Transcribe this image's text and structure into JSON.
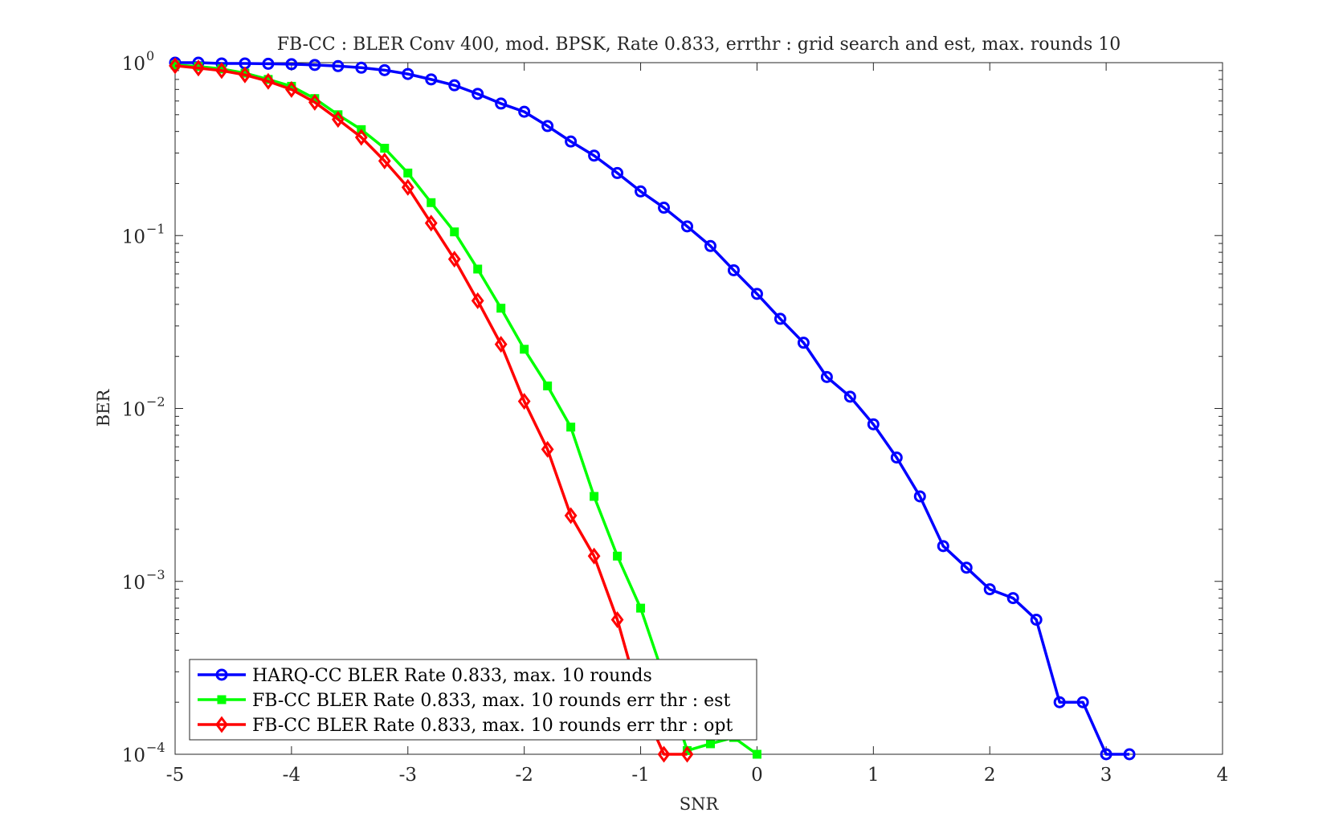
{
  "chart_data": {
    "type": "line",
    "title": "FB-CC : BLER Conv 400, mod. BPSK, Rate 0.833, errthr : grid search and est, max. rounds 10",
    "xlabel": "SNR",
    "ylabel": "BER",
    "xlim": [
      -5,
      4
    ],
    "ylim": [
      0.0001,
      1
    ],
    "yscale": "log",
    "grid": false,
    "legend_position": "bottom-left",
    "x_ticks": [
      "-5",
      "-4",
      "-3",
      "-2",
      "-1",
      "0",
      "1",
      "2",
      "3",
      "4"
    ],
    "y_ticks": [
      {
        "value": 1,
        "base": "10",
        "exp": "0"
      },
      {
        "value": 0.1,
        "base": "10",
        "exp": "−1"
      },
      {
        "value": 0.01,
        "base": "10",
        "exp": "−2"
      },
      {
        "value": 0.001,
        "base": "10",
        "exp": "−3"
      },
      {
        "value": 0.0001,
        "base": "10",
        "exp": "−4"
      }
    ],
    "series": [
      {
        "name": "HARQ-CC BLER Rate 0.833, max. 10 rounds",
        "color": "#0000ff",
        "marker": "circle",
        "x": [
          -5,
          -4.8,
          -4.6,
          -4.4,
          -4.2,
          -4,
          -3.8,
          -3.6,
          -3.4,
          -3.2,
          -3,
          -2.8,
          -2.6,
          -2.4,
          -2.2,
          -2,
          -1.8,
          -1.6,
          -1.4,
          -1.2,
          -1,
          -0.8,
          -0.6,
          -0.4,
          -0.2,
          0,
          0.2,
          0.4,
          0.6,
          0.8,
          1,
          1.2,
          1.4,
          1.6,
          1.8,
          2,
          2.2,
          2.4,
          2.6,
          2.8,
          3,
          3.2
        ],
        "y": [
          1.0,
          1.0,
          0.99,
          0.99,
          0.985,
          0.98,
          0.97,
          0.955,
          0.935,
          0.905,
          0.86,
          0.8,
          0.74,
          0.66,
          0.58,
          0.52,
          0.43,
          0.35,
          0.29,
          0.23,
          0.18,
          0.145,
          0.113,
          0.087,
          0.063,
          0.046,
          0.033,
          0.024,
          0.0152,
          0.0117,
          0.0081,
          0.0052,
          0.0031,
          0.0016,
          0.0012,
          0.0009,
          0.0008,
          0.0006,
          0.0002,
          0.0002,
          0.0001,
          0.0001
        ]
      },
      {
        "name": "FB-CC BLER Rate 0.833, max. 10 rounds err thr : est",
        "color": "#00ff00",
        "marker": "square",
        "x": [
          -5,
          -4.8,
          -4.6,
          -4.4,
          -4.2,
          -4,
          -3.8,
          -3.6,
          -3.4,
          -3.2,
          -3,
          -2.8,
          -2.6,
          -2.4,
          -2.2,
          -2,
          -1.8,
          -1.6,
          -1.4,
          -1.2,
          -1,
          -0.8,
          -0.6,
          -0.4,
          -0.2,
          0
        ],
        "y": [
          0.97,
          0.95,
          0.92,
          0.87,
          0.8,
          0.73,
          0.62,
          0.5,
          0.41,
          0.32,
          0.23,
          0.155,
          0.105,
          0.064,
          0.038,
          0.022,
          0.0135,
          0.0078,
          0.0031,
          0.0014,
          0.0007,
          0.00028,
          0.000105,
          0.000115,
          0.000125,
          0.0001
        ]
      },
      {
        "name": "FB-CC BLER Rate 0.833, max. 10 rounds err thr : opt",
        "color": "#ff0000",
        "marker": "diamond",
        "x": [
          -5,
          -4.8,
          -4.6,
          -4.4,
          -4.2,
          -4,
          -3.8,
          -3.6,
          -3.4,
          -3.2,
          -3,
          -2.8,
          -2.6,
          -2.4,
          -2.2,
          -2,
          -1.8,
          -1.6,
          -1.4,
          -1.2,
          -1,
          -0.8,
          -0.6
        ],
        "y": [
          0.96,
          0.93,
          0.9,
          0.85,
          0.78,
          0.7,
          0.59,
          0.47,
          0.37,
          0.27,
          0.19,
          0.118,
          0.073,
          0.042,
          0.0235,
          0.011,
          0.0058,
          0.0024,
          0.0014,
          0.0006,
          0.0002,
          0.0001,
          0.0001
        ]
      }
    ]
  }
}
